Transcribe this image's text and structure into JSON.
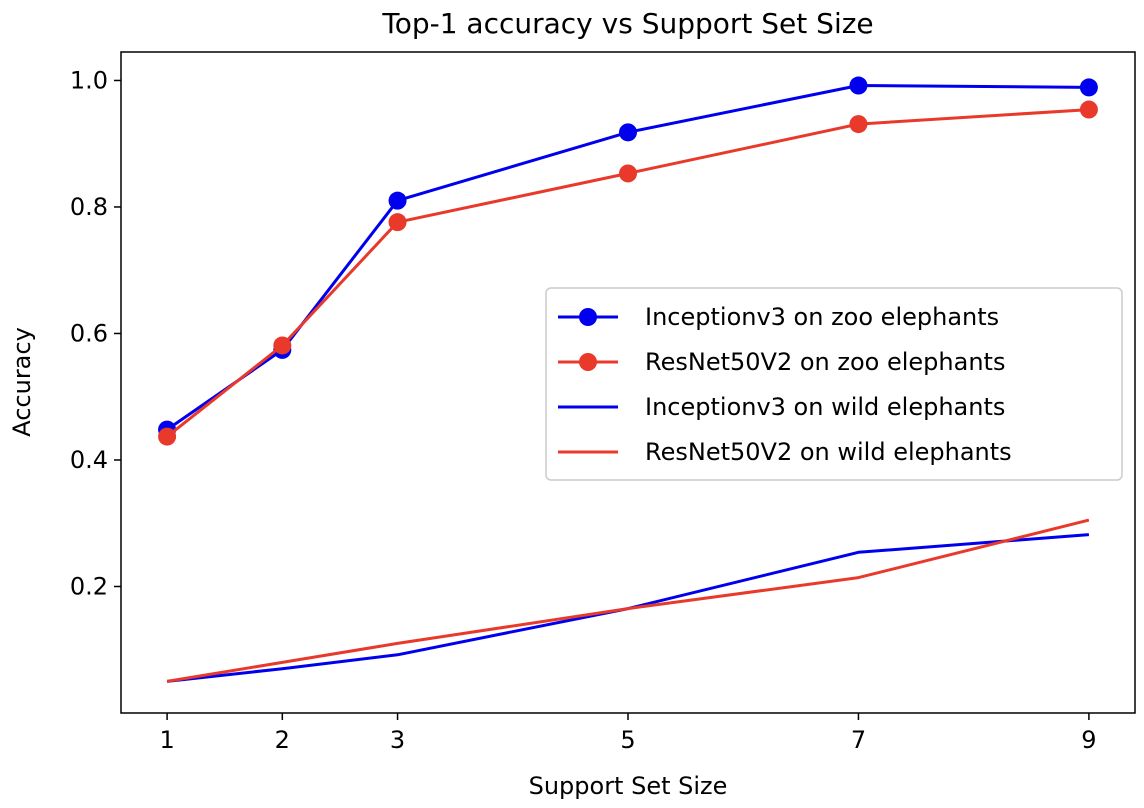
{
  "chart_data": {
    "type": "line",
    "title": "Top-1 accuracy vs Support Set Size",
    "xlabel": "Support Set Size",
    "ylabel": "Accuracy",
    "x": [
      1,
      2,
      3,
      5,
      7,
      9
    ],
    "xticks": [
      "1",
      "2",
      "3",
      "5",
      "7",
      "9"
    ],
    "yticks": [
      0.2,
      0.4,
      0.6,
      0.8,
      1.0
    ],
    "ytick_labels": [
      "0.2",
      "0.4",
      "0.6",
      "0.8",
      "1.0"
    ],
    "xlim": [
      0.6,
      9.4
    ],
    "ylim": [
      0.0,
      1.045
    ],
    "grid": false,
    "legend_position": "center-right",
    "series": [
      {
        "name": "Inceptionv3 on zoo elephants",
        "color": "#0000ee",
        "markers": true,
        "values": [
          0.448,
          0.574,
          0.81,
          0.918,
          0.992,
          0.989
        ]
      },
      {
        "name": "ResNet50V2 on zoo elephants",
        "color": "#e8392b",
        "markers": true,
        "values": [
          0.437,
          0.581,
          0.776,
          0.853,
          0.931,
          0.954
        ]
      },
      {
        "name": "Inceptionv3 on wild elephants",
        "color": "#0000ee",
        "markers": false,
        "values": [
          0.05,
          0.07,
          0.092,
          0.165,
          0.254,
          0.282
        ]
      },
      {
        "name": "ResNet50V2 on wild elephants",
        "color": "#e8392b",
        "markers": false,
        "values": [
          0.05,
          0.08,
          0.11,
          0.165,
          0.214,
          0.305
        ]
      }
    ]
  }
}
